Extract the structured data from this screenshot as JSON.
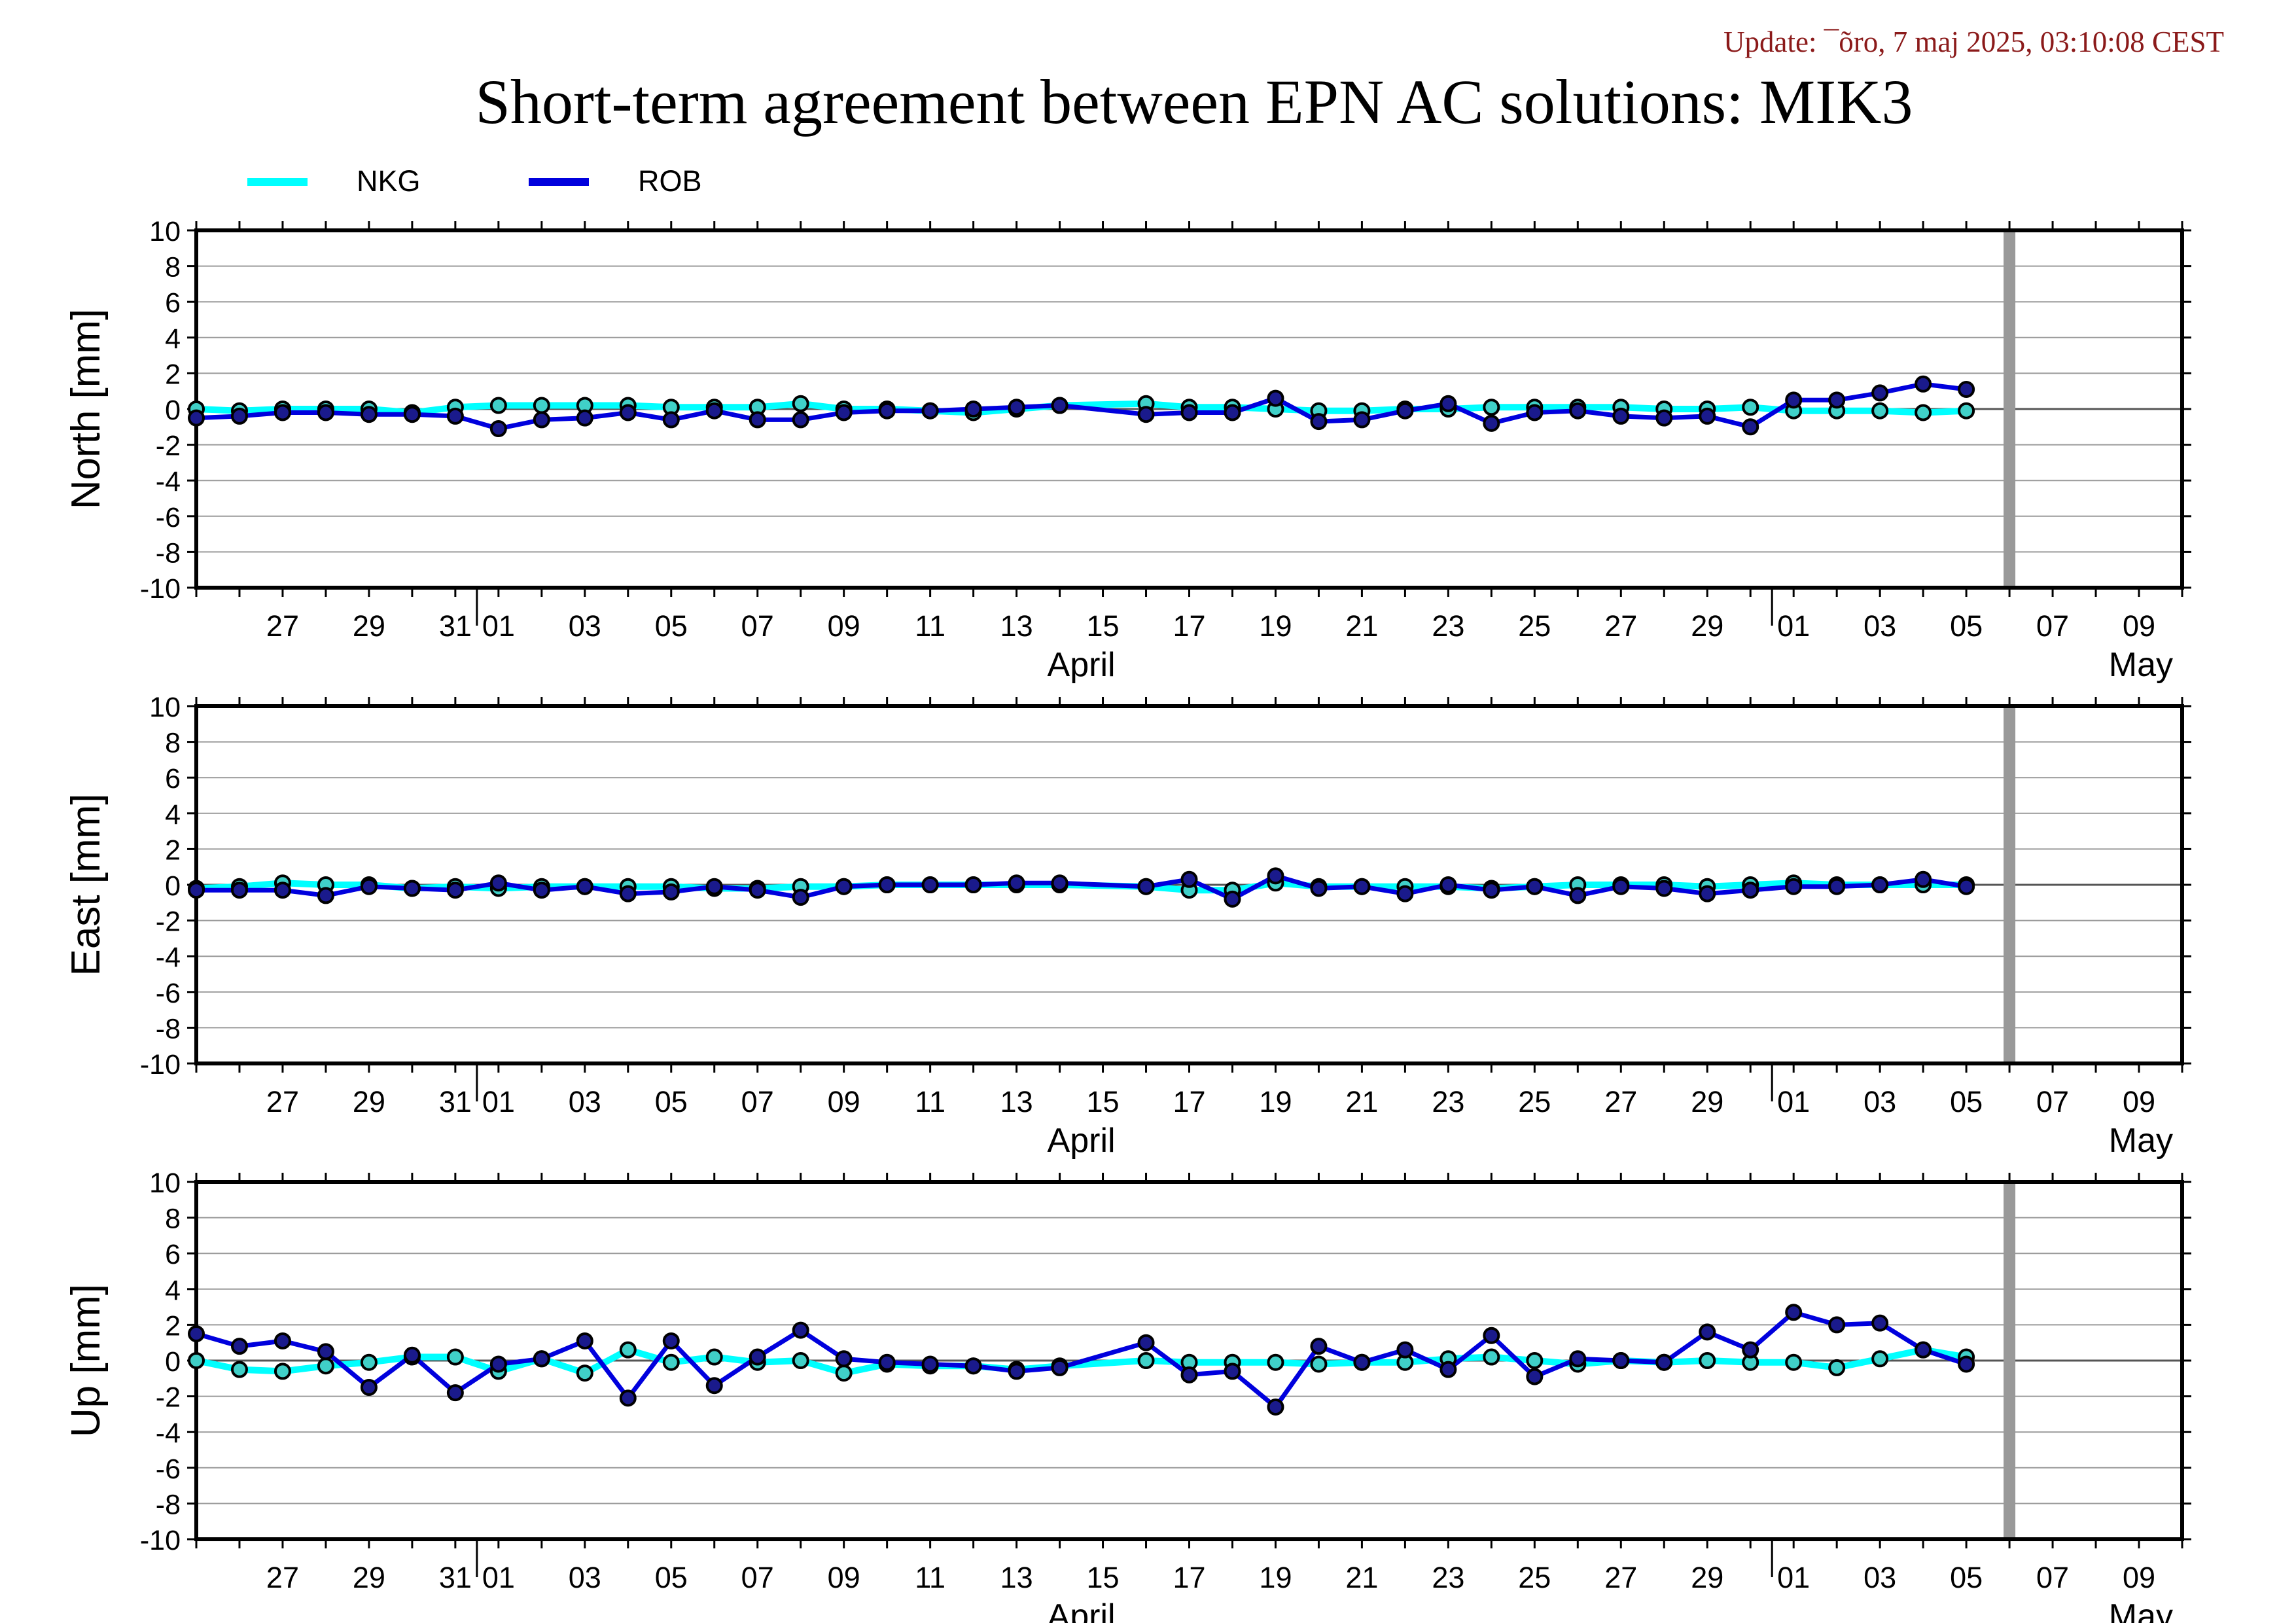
{
  "header": {
    "update": "Update: ¯õro, 7 maj 2025, 03:10:08 CEST",
    "title": "Short-term agreement between EPN AC solutions: MIK3"
  },
  "legend": [
    {
      "name": "NKG",
      "color": "#00ffff"
    },
    {
      "name": "ROB",
      "color": "#0000dd"
    }
  ],
  "colors": {
    "nkg": "#00ffff",
    "rob": "#0000dd",
    "data_gap_bar": "#999999"
  },
  "chart_data": [
    {
      "type": "line",
      "ylabel": "North [mm]",
      "ylim": [
        -10,
        10
      ],
      "yticks": [
        10,
        8,
        6,
        4,
        2,
        0,
        -2,
        -4,
        -6,
        -8,
        -10
      ],
      "grid": true,
      "xlim": [
        "2025-03-25",
        "2025-05-10"
      ],
      "xticks": [
        "27",
        "29",
        "31",
        "01",
        "03",
        "05",
        "07",
        "09",
        "11",
        "13",
        "15",
        "17",
        "19",
        "21",
        "23",
        "25",
        "27",
        "29",
        "01",
        "03",
        "05",
        "07",
        "09"
      ],
      "month_labels": [
        "April",
        "May"
      ],
      "series": [
        {
          "name": "NKG",
          "x": [
            "03-25",
            "03-26",
            "03-27",
            "03-28",
            "03-29",
            "03-30",
            "03-31",
            "04-01",
            "04-02",
            "04-03",
            "04-04",
            "04-05",
            "04-06",
            "04-07",
            "04-08",
            "04-09",
            "04-10",
            "04-11",
            "04-12",
            "04-13",
            "04-14",
            "04-16",
            "04-17",
            "04-18",
            "04-19",
            "04-20",
            "04-21",
            "04-22",
            "04-23",
            "04-24",
            "04-25",
            "04-26",
            "04-27",
            "04-28",
            "04-29",
            "04-30",
            "05-01",
            "05-02",
            "05-03",
            "05-04",
            "05-05"
          ],
          "values": [
            0.0,
            -0.1,
            0.0,
            0.0,
            0.0,
            -0.2,
            0.1,
            0.2,
            0.2,
            0.2,
            0.2,
            0.1,
            0.1,
            0.1,
            0.3,
            0.0,
            0.0,
            -0.1,
            -0.2,
            0.0,
            0.2,
            0.3,
            0.1,
            0.1,
            0.0,
            -0.1,
            -0.1,
            0.0,
            0.0,
            0.1,
            0.1,
            0.1,
            0.1,
            0.0,
            0.0,
            0.1,
            -0.1,
            -0.1,
            -0.1,
            -0.2,
            -0.1
          ]
        },
        {
          "name": "ROB",
          "x": [
            "03-25",
            "03-26",
            "03-27",
            "03-28",
            "03-29",
            "03-30",
            "03-31",
            "04-01",
            "04-02",
            "04-03",
            "04-04",
            "04-05",
            "04-06",
            "04-07",
            "04-08",
            "04-09",
            "04-10",
            "04-11",
            "04-12",
            "04-13",
            "04-14",
            "04-16",
            "04-17",
            "04-18",
            "04-19",
            "04-20",
            "04-21",
            "04-22",
            "04-23",
            "04-24",
            "04-25",
            "04-26",
            "04-27",
            "04-28",
            "04-29",
            "04-30",
            "05-01",
            "05-02",
            "05-03",
            "05-04",
            "05-05"
          ],
          "values": [
            -0.5,
            -0.4,
            -0.2,
            -0.2,
            -0.3,
            -0.3,
            -0.4,
            -1.1,
            -0.6,
            -0.5,
            -0.2,
            -0.6,
            -0.1,
            -0.6,
            -0.6,
            -0.2,
            -0.1,
            -0.1,
            0.0,
            0.1,
            0.2,
            -0.3,
            -0.2,
            -0.2,
            0.6,
            -0.7,
            -0.6,
            -0.1,
            0.3,
            -0.8,
            -0.2,
            -0.1,
            -0.4,
            -0.5,
            -0.4,
            -1.0,
            0.5,
            0.5,
            0.9,
            1.4,
            1.1
          ]
        }
      ]
    },
    {
      "type": "line",
      "ylabel": "East [mm]",
      "ylim": [
        -10,
        10
      ],
      "yticks": [
        10,
        8,
        6,
        4,
        2,
        0,
        -2,
        -4,
        -6,
        -8,
        -10
      ],
      "grid": true,
      "xlim": [
        "2025-03-25",
        "2025-05-10"
      ],
      "xticks": [
        "27",
        "29",
        "31",
        "01",
        "03",
        "05",
        "07",
        "09",
        "11",
        "13",
        "15",
        "17",
        "19",
        "21",
        "23",
        "25",
        "27",
        "29",
        "01",
        "03",
        "05",
        "07",
        "09"
      ],
      "month_labels": [
        "April",
        "May"
      ],
      "series": [
        {
          "name": "NKG",
          "x": [
            "03-25",
            "03-26",
            "03-27",
            "03-28",
            "03-29",
            "03-30",
            "03-31",
            "04-01",
            "04-02",
            "04-03",
            "04-04",
            "04-05",
            "04-06",
            "04-07",
            "04-08",
            "04-09",
            "04-10",
            "04-11",
            "04-12",
            "04-13",
            "04-14",
            "04-16",
            "04-17",
            "04-18",
            "04-19",
            "04-20",
            "04-21",
            "04-22",
            "04-23",
            "04-24",
            "04-25",
            "04-26",
            "04-27",
            "04-28",
            "04-29",
            "04-30",
            "05-01",
            "05-02",
            "05-03",
            "05-04",
            "05-05"
          ],
          "values": [
            -0.2,
            -0.1,
            0.1,
            0.0,
            0.0,
            -0.2,
            -0.1,
            -0.2,
            -0.1,
            -0.1,
            -0.1,
            -0.1,
            -0.2,
            -0.2,
            -0.1,
            -0.1,
            0.0,
            0.0,
            0.0,
            0.0,
            0.0,
            -0.1,
            -0.3,
            -0.3,
            0.1,
            -0.1,
            -0.1,
            -0.1,
            -0.1,
            -0.2,
            -0.1,
            0.0,
            0.0,
            0.0,
            -0.1,
            0.0,
            0.1,
            0.0,
            0.0,
            0.0,
            0.0
          ]
        },
        {
          "name": "ROB",
          "x": [
            "03-25",
            "03-26",
            "03-27",
            "03-28",
            "03-29",
            "03-30",
            "03-31",
            "04-01",
            "04-02",
            "04-03",
            "04-04",
            "04-05",
            "04-06",
            "04-07",
            "04-08",
            "04-09",
            "04-10",
            "04-11",
            "04-12",
            "04-13",
            "04-14",
            "04-16",
            "04-17",
            "04-18",
            "04-19",
            "04-20",
            "04-21",
            "04-22",
            "04-23",
            "04-24",
            "04-25",
            "04-26",
            "04-27",
            "04-28",
            "04-29",
            "04-30",
            "05-01",
            "05-02",
            "05-03",
            "05-04",
            "05-05"
          ],
          "values": [
            -0.3,
            -0.3,
            -0.3,
            -0.6,
            -0.1,
            -0.2,
            -0.3,
            0.1,
            -0.3,
            -0.1,
            -0.5,
            -0.4,
            -0.1,
            -0.3,
            -0.7,
            -0.1,
            0.0,
            0.0,
            0.0,
            0.1,
            0.1,
            -0.1,
            0.3,
            -0.8,
            0.5,
            -0.2,
            -0.1,
            -0.5,
            0.0,
            -0.3,
            -0.1,
            -0.6,
            -0.1,
            -0.2,
            -0.5,
            -0.3,
            -0.1,
            -0.1,
            0.0,
            0.3,
            -0.1
          ]
        }
      ]
    },
    {
      "type": "line",
      "ylabel": "Up [mm]",
      "ylim": [
        -10,
        10
      ],
      "yticks": [
        10,
        8,
        6,
        4,
        2,
        0,
        -2,
        -4,
        -6,
        -8,
        -10
      ],
      "grid": true,
      "xlim": [
        "2025-03-25",
        "2025-05-10"
      ],
      "xticks": [
        "27",
        "29",
        "31",
        "01",
        "03",
        "05",
        "07",
        "09",
        "11",
        "13",
        "15",
        "17",
        "19",
        "21",
        "23",
        "25",
        "27",
        "29",
        "01",
        "03",
        "05",
        "07",
        "09"
      ],
      "month_labels": [
        "April",
        "May"
      ],
      "series": [
        {
          "name": "NKG",
          "x": [
            "03-25",
            "03-26",
            "03-27",
            "03-28",
            "03-29",
            "03-30",
            "03-31",
            "04-01",
            "04-02",
            "04-03",
            "04-04",
            "04-05",
            "04-06",
            "04-07",
            "04-08",
            "04-09",
            "04-10",
            "04-11",
            "04-12",
            "04-13",
            "04-14",
            "04-16",
            "04-17",
            "04-18",
            "04-19",
            "04-20",
            "04-21",
            "04-22",
            "04-23",
            "04-24",
            "04-25",
            "04-26",
            "04-27",
            "04-28",
            "04-29",
            "04-30",
            "05-01",
            "05-02",
            "05-03",
            "05-04",
            "05-05"
          ],
          "values": [
            0.0,
            -0.5,
            -0.6,
            -0.3,
            -0.1,
            0.2,
            0.2,
            -0.6,
            0.1,
            -0.7,
            0.6,
            -0.1,
            0.2,
            -0.1,
            0.0,
            -0.7,
            -0.2,
            -0.3,
            -0.3,
            -0.5,
            -0.3,
            0.0,
            -0.1,
            -0.1,
            -0.1,
            -0.2,
            -0.1,
            -0.1,
            0.1,
            0.2,
            0.0,
            -0.2,
            0.0,
            -0.1,
            0.0,
            -0.1,
            -0.1,
            -0.4,
            0.1,
            0.6,
            0.2
          ]
        },
        {
          "name": "ROB",
          "x": [
            "03-25",
            "03-26",
            "03-27",
            "03-28",
            "03-29",
            "03-30",
            "03-31",
            "04-01",
            "04-02",
            "04-03",
            "04-04",
            "04-05",
            "04-06",
            "04-07",
            "04-08",
            "04-09",
            "04-10",
            "04-11",
            "04-12",
            "04-13",
            "04-14",
            "04-16",
            "04-17",
            "04-18",
            "04-19",
            "04-20",
            "04-21",
            "04-22",
            "04-23",
            "04-24",
            "04-25",
            "04-26",
            "04-27",
            "04-28",
            "04-29",
            "04-30",
            "05-01",
            "05-02",
            "05-03",
            "05-04",
            "05-05"
          ],
          "values": [
            1.5,
            0.8,
            1.1,
            0.5,
            -1.5,
            0.3,
            -1.8,
            -0.2,
            0.1,
            1.1,
            -2.1,
            1.1,
            -1.4,
            0.2,
            1.7,
            0.1,
            -0.1,
            -0.2,
            -0.3,
            -0.6,
            -0.4,
            1.0,
            -0.8,
            -0.6,
            -2.6,
            0.8,
            -0.1,
            0.6,
            -0.5,
            1.4,
            -0.9,
            0.1,
            0.0,
            -0.1,
            1.6,
            0.6,
            2.7,
            2.0,
            2.1,
            0.6,
            -0.2
          ]
        }
      ]
    }
  ]
}
